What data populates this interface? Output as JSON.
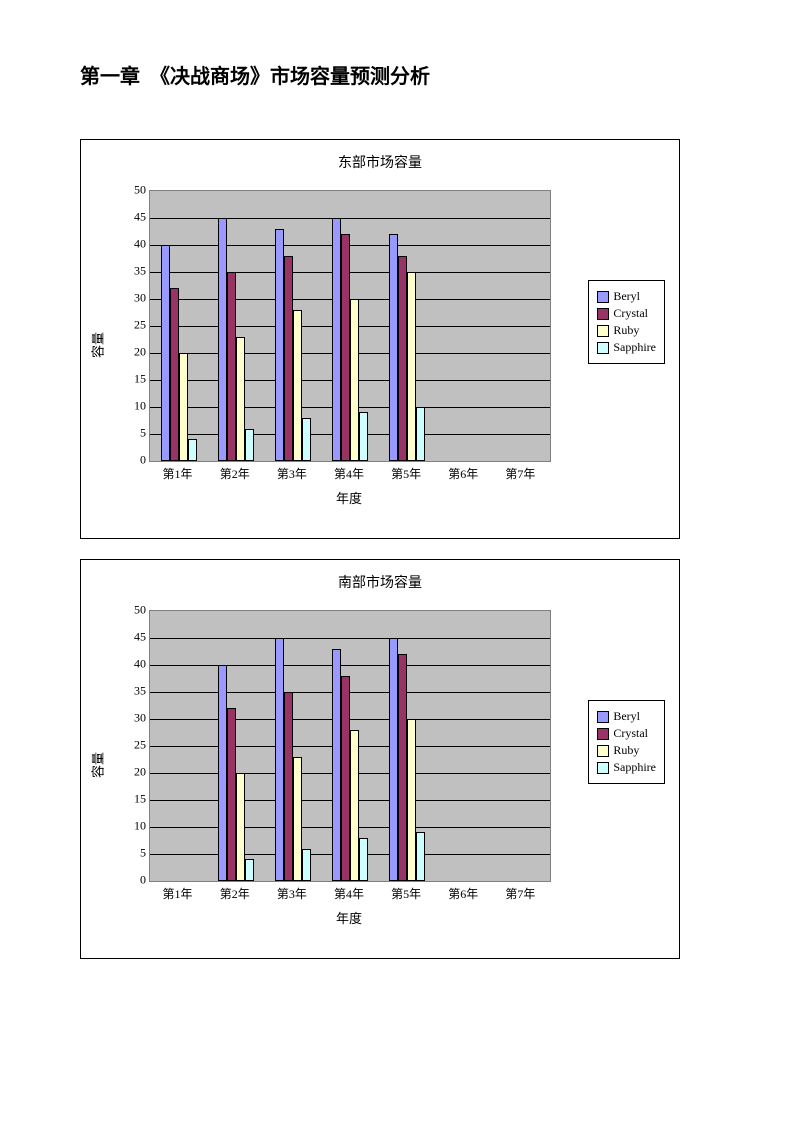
{
  "heading": "第一章　《决战商场》市场容量预测分析",
  "series_names": [
    "Beryl",
    "Crystal",
    "Ruby",
    "Sapphire"
  ],
  "series_colors": [
    "#9999ff",
    "#993366",
    "#ffffcc",
    "#ccffff"
  ],
  "categories": [
    "第1年",
    "第2年",
    "第3年",
    "第4年",
    "第5年",
    "第6年",
    "第7年"
  ],
  "ylim": [
    0,
    50
  ],
  "ytick_step": 5,
  "y_label": "容量",
  "x_label": "年度",
  "plot_bg": "#c0c0c0",
  "grid_color": "#000000",
  "bar_border": "#000000",
  "title_fontsize": 14,
  "label_fontsize": 13,
  "tick_fontsize": 12,
  "charts": [
    {
      "title": "东部市场容量",
      "data": {
        "Beryl": [
          40,
          45,
          43,
          45,
          42,
          null,
          null
        ],
        "Crystal": [
          32,
          35,
          38,
          42,
          38,
          null,
          null
        ],
        "Ruby": [
          20,
          23,
          28,
          30,
          35,
          null,
          null
        ],
        "Sapphire": [
          4,
          6,
          8,
          9,
          10,
          null,
          null
        ]
      }
    },
    {
      "title": "南部市场容量",
      "data": {
        "Beryl": [
          null,
          40,
          45,
          43,
          45,
          null,
          null
        ],
        "Crystal": [
          null,
          32,
          35,
          38,
          42,
          null,
          null
        ],
        "Ruby": [
          null,
          20,
          23,
          28,
          30,
          null,
          null
        ],
        "Sapphire": [
          null,
          4,
          6,
          8,
          9,
          null,
          null
        ]
      }
    }
  ]
}
